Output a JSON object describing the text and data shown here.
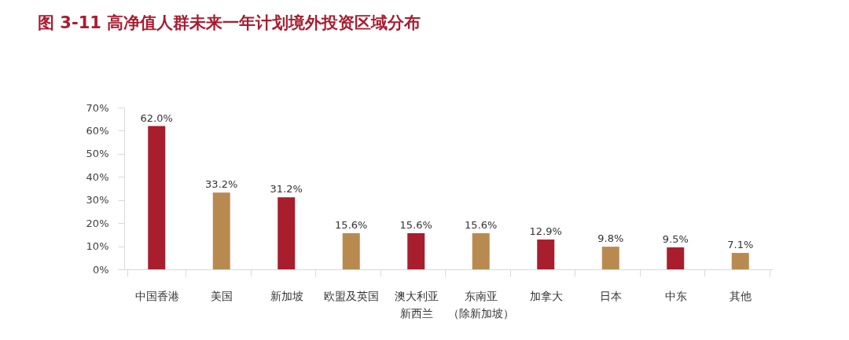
{
  "chart_data": {
    "type": "bar",
    "title": "图 3-11 高净值人群未来一年计划境外投资区域分布",
    "categories": [
      "中国香港",
      "美国",
      "新加坡",
      "欧盟及英国",
      "澳大利亚新西兰",
      "东南亚（除新加坡）",
      "加拿大",
      "日本",
      "中东",
      "其他"
    ],
    "values": [
      62.0,
      33.2,
      31.2,
      15.6,
      15.6,
      15.6,
      12.9,
      9.8,
      9.5,
      7.1
    ],
    "colors": [
      "#a81e2d",
      "#b98a50",
      "#a81e2d",
      "#b98a50",
      "#a81e2d",
      "#b98a50",
      "#a81e2d",
      "#b98a50",
      "#a81e2d",
      "#b98a50"
    ],
    "value_labels": [
      "62.0%",
      "33.2%",
      "31.2%",
      "15.6%",
      "15.6%",
      "15.6%",
      "12.9%",
      "9.8%",
      "9.5%",
      "7.1%"
    ],
    "ylim": [
      0,
      70
    ],
    "yticks": [
      {
        "value": 0,
        "label": "0%"
      },
      {
        "value": 10,
        "label": "10%"
      },
      {
        "value": 20,
        "label": "20%"
      },
      {
        "value": 30,
        "label": "30%"
      },
      {
        "value": 40,
        "label": "40%"
      },
      {
        "value": 50,
        "label": "50%"
      },
      {
        "value": 60,
        "label": "60%"
      },
      {
        "value": 70,
        "label": "70%"
      }
    ],
    "grid": false
  }
}
